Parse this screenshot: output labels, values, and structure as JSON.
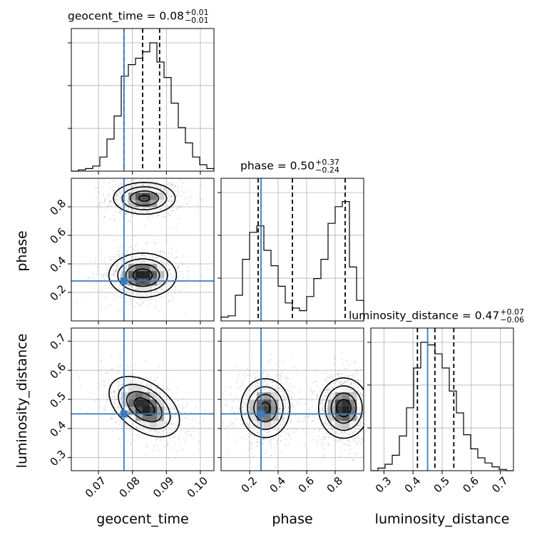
{
  "chart_data": {
    "type": "corner",
    "parameters": [
      "geocent_time",
      "phase",
      "luminosity_distance"
    ],
    "ranges": [
      [
        0.062,
        0.104
      ],
      [
        0.0,
        1.0
      ],
      [
        0.255,
        0.745
      ]
    ],
    "truths": [
      0.0775,
      0.28,
      0.45
    ],
    "truth_color": "#3a7bbd",
    "titles": [
      {
        "text": "geocent_time = 0.08",
        "plus": "+0.01",
        "minus": "−0.01"
      },
      {
        "text": "phase = 0.50",
        "plus": "+0.37",
        "minus": "−0.24"
      },
      {
        "text": "luminosity_distance = 0.47",
        "plus": "+0.07",
        "minus": "−0.06"
      }
    ],
    "quantiles": [
      [
        0.0775,
        0.083,
        0.088
      ],
      [
        0.26,
        0.5,
        0.87
      ],
      [
        0.415,
        0.475,
        0.54
      ]
    ],
    "ticks": [
      {
        "values": [
          0.07,
          0.08,
          0.09,
          0.1
        ],
        "labels": [
          "0.07",
          "0.08",
          "0.09",
          "0.10"
        ]
      },
      {
        "values": [
          0.2,
          0.4,
          0.6,
          0.8
        ],
        "labels": [
          "0.2",
          "0.4",
          "0.6",
          "0.8"
        ]
      },
      {
        "values": [
          0.3,
          0.4,
          0.5,
          0.6,
          0.7
        ],
        "labels": [
          "0.3",
          "0.4",
          "0.5",
          "0.6",
          "0.7"
        ]
      }
    ],
    "histograms": [
      {
        "start": 0.062,
        "width": 0.0021,
        "counts": [
          0.0,
          0.01,
          0.02,
          0.04,
          0.11,
          0.25,
          0.43,
          0.74,
          0.83,
          0.88,
          0.93,
          1.0,
          0.85,
          0.73,
          0.53,
          0.34,
          0.22,
          0.11,
          0.05,
          0.02
        ]
      },
      {
        "start": 0.0,
        "width": 0.05,
        "counts": [
          0.03,
          0.04,
          0.2,
          0.48,
          0.69,
          0.74,
          0.55,
          0.43,
          0.27,
          0.14,
          0.1,
          0.08,
          0.19,
          0.33,
          0.48,
          0.76,
          0.89,
          0.93,
          0.42,
          0.16
        ]
      },
      {
        "start": 0.255,
        "width": 0.0245,
        "counts": [
          0.0,
          0.02,
          0.05,
          0.12,
          0.27,
          0.49,
          0.8,
          1.0,
          0.98,
          0.91,
          0.8,
          0.62,
          0.45,
          0.28,
          0.17,
          0.1,
          0.06,
          0.03,
          0.01,
          0.0
        ]
      }
    ],
    "density_2d": [
      {
        "x": 0,
        "y": 1,
        "modes": [
          {
            "cx": 0.0835,
            "cy": 0.86,
            "sx": 0.0045,
            "sy": 0.055,
            "w": 0.9
          },
          {
            "cx": 0.083,
            "cy": 0.32,
            "sx": 0.0048,
            "sy": 0.075,
            "w": 1.0
          }
        ]
      },
      {
        "x": 0,
        "y": 2,
        "modes": [
          {
            "cx": 0.0835,
            "cy": 0.475,
            "sx": 0.005,
            "sy": 0.05,
            "w": 1.0,
            "rho": -0.45
          }
        ]
      },
      {
        "x": 1,
        "y": 2,
        "modes": [
          {
            "cx": 0.31,
            "cy": 0.47,
            "sx": 0.085,
            "sy": 0.05,
            "w": 1.0
          },
          {
            "cx": 0.86,
            "cy": 0.47,
            "sx": 0.085,
            "sy": 0.05,
            "w": 1.1
          }
        ]
      }
    ],
    "grid": true
  }
}
